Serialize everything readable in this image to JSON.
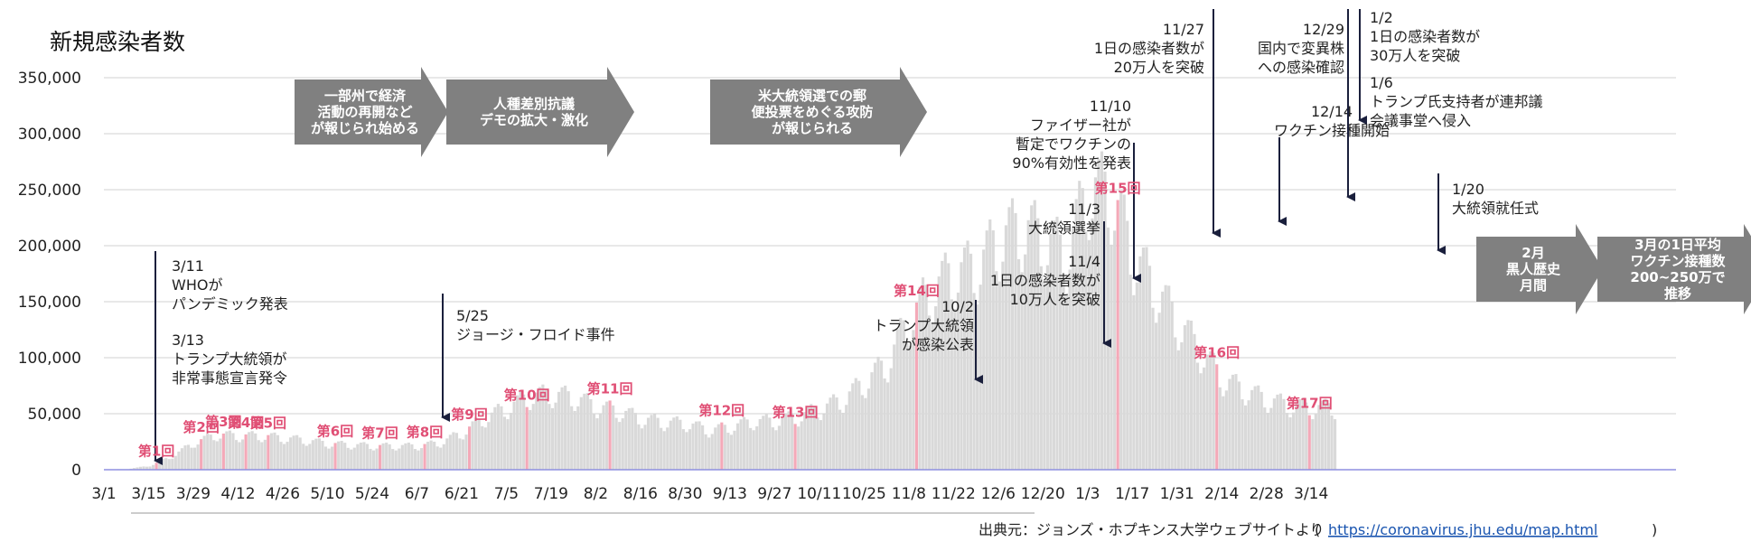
{
  "chart_data": {
    "type": "bar",
    "title": "新規感染者数",
    "ylim": [
      0,
      350000
    ],
    "y_ticks": [
      "0",
      "50,000",
      "100,000",
      "150,000",
      "200,000",
      "250,000",
      "300,000",
      "350,000"
    ],
    "x_ticks": [
      "3/1",
      "3/15",
      "3/29",
      "4/12",
      "4/26",
      "5/10",
      "5/24",
      "6/7",
      "6/21",
      "7/5",
      "7/19",
      "8/2",
      "8/16",
      "8/30",
      "9/13",
      "9/27",
      "10/11",
      "10/25",
      "11/8",
      "11/22",
      "12/6",
      "12/20",
      "1/3",
      "1/17",
      "1/31",
      "2/14",
      "2/28",
      "3/14"
    ],
    "x_start": "2020-03-01",
    "bar_color": "#d9d9d9",
    "highlight_color": "#f4a9b8",
    "weekly_new_cases_estimate": [
      [
        "2020-03-01",
        100
      ],
      [
        "2020-03-08",
        600
      ],
      [
        "2020-03-15",
        3500
      ],
      [
        "2020-03-22",
        12000
      ],
      [
        "2020-03-29",
        24000
      ],
      [
        "2020-04-05",
        31000
      ],
      [
        "2020-04-12",
        30000
      ],
      [
        "2020-04-19",
        30000
      ],
      [
        "2020-04-26",
        28000
      ],
      [
        "2020-05-03",
        26000
      ],
      [
        "2020-05-10",
        23000
      ],
      [
        "2020-05-17",
        22000
      ],
      [
        "2020-05-24",
        21000
      ],
      [
        "2020-05-31",
        21000
      ],
      [
        "2020-06-07",
        21000
      ],
      [
        "2020-06-14",
        24000
      ],
      [
        "2020-06-21",
        33000
      ],
      [
        "2020-06-28",
        46000
      ],
      [
        "2020-07-05",
        55000
      ],
      [
        "2020-07-12",
        65000
      ],
      [
        "2020-07-19",
        67000
      ],
      [
        "2020-07-26",
        64000
      ],
      [
        "2020-08-02",
        56000
      ],
      [
        "2020-08-09",
        52000
      ],
      [
        "2020-08-16",
        45000
      ],
      [
        "2020-08-23",
        42000
      ],
      [
        "2020-08-30",
        41000
      ],
      [
        "2020-09-06",
        35000
      ],
      [
        "2020-09-13",
        38000
      ],
      [
        "2020-09-20",
        43000
      ],
      [
        "2020-09-27",
        43000
      ],
      [
        "2020-10-04",
        47000
      ],
      [
        "2020-10-11",
        54000
      ],
      [
        "2020-10-18",
        62000
      ],
      [
        "2020-10-25",
        78000
      ],
      [
        "2020-11-01",
        95000
      ],
      [
        "2020-11-08",
        135000
      ],
      [
        "2020-11-15",
        160000
      ],
      [
        "2020-11-22",
        175000
      ],
      [
        "2020-11-29",
        180000
      ],
      [
        "2020-12-06",
        205000
      ],
      [
        "2020-12-13",
        215000
      ],
      [
        "2020-12-20",
        205000
      ],
      [
        "2020-12-27",
        190000
      ],
      [
        "2021-01-03",
        250000
      ],
      [
        "2021-01-10",
        245000
      ],
      [
        "2021-01-17",
        190000
      ],
      [
        "2021-01-24",
        160000
      ],
      [
        "2021-01-31",
        130000
      ],
      [
        "2021-02-07",
        105000
      ],
      [
        "2021-02-14",
        80000
      ],
      [
        "2021-02-21",
        70000
      ],
      [
        "2021-02-28",
        62000
      ],
      [
        "2021-03-07",
        57000
      ],
      [
        "2021-03-14",
        55000
      ],
      [
        "2021-03-21",
        55000
      ]
    ],
    "meetings": [
      {
        "label": "第1回",
        "date": "2020-03-17"
      },
      {
        "label": "第2回",
        "date": "2020-03-31"
      },
      {
        "label": "第3回",
        "date": "2020-04-07"
      },
      {
        "label": "第4回",
        "date": "2020-04-14"
      },
      {
        "label": "第5回",
        "date": "2020-04-21"
      },
      {
        "label": "第6回",
        "date": "2020-05-12"
      },
      {
        "label": "第7回",
        "date": "2020-05-26"
      },
      {
        "label": "第8回",
        "date": "2020-06-09"
      },
      {
        "label": "第9回",
        "date": "2020-06-23"
      },
      {
        "label": "第10回",
        "date": "2020-07-11"
      },
      {
        "label": "第11回",
        "date": "2020-08-06"
      },
      {
        "label": "第12回",
        "date": "2020-09-10"
      },
      {
        "label": "第13回",
        "date": "2020-10-03"
      },
      {
        "label": "第14回",
        "date": "2020-11-10"
      },
      {
        "label": "第15回",
        "date": "2021-01-12"
      },
      {
        "label": "第16回",
        "date": "2021-02-12"
      },
      {
        "label": "第17回",
        "date": "2021-03-13"
      }
    ],
    "events": [
      {
        "date": "2020-03-11",
        "lines": [
          "3/11",
          "WHOが",
          "パンデミック発表"
        ]
      },
      {
        "date": "2020-03-13",
        "lines": [
          "3/13",
          "トランプ大統領が",
          "非常事態宣言発令"
        ]
      },
      {
        "date": "2020-05-25",
        "lines": [
          "5/25",
          "ジョージ・フロイド事件"
        ]
      },
      {
        "date": "2020-10-02",
        "lines": [
          "10/2",
          "トランプ大統領",
          "が感染公表"
        ]
      },
      {
        "date": "2020-11-03",
        "lines": [
          "11/3",
          "大統領選挙"
        ]
      },
      {
        "date": "2020-11-04",
        "lines": [
          "11/4",
          "1日の感染者数が",
          "10万人を突破"
        ]
      },
      {
        "date": "2020-11-10",
        "lines": [
          "11/10",
          "ファイザー社が",
          "暫定でワクチンの",
          "90%有効性を発表"
        ]
      },
      {
        "date": "2020-11-27",
        "lines": [
          "11/27",
          "1日の感染者数が",
          "20万人を突破"
        ]
      },
      {
        "date": "2020-12-14",
        "lines": [
          "12/14",
          "ワクチン接種開始"
        ]
      },
      {
        "date": "2020-12-29",
        "lines": [
          "12/29",
          "国内で変異株",
          "への感染確認"
        ]
      },
      {
        "date": "2021-01-02",
        "lines": [
          "1/2",
          "1日の感染者数が",
          "30万人を突破"
        ]
      },
      {
        "date": "2021-01-06",
        "lines": [
          "1/6",
          "トランプ氏支持者が連邦議",
          "会議事堂へ侵入"
        ]
      },
      {
        "date": "2021-01-20",
        "lines": [
          "1/20",
          "大統領就任式"
        ]
      }
    ],
    "period_arrows": [
      {
        "lines": [
          "一部州で経済",
          "活動の再開など",
          "が報じられ始める"
        ],
        "color": "#808080"
      },
      {
        "lines": [
          "人種差別抗議",
          "デモの拡大・激化"
        ],
        "color": "#808080"
      },
      {
        "lines": [
          "米大統領選での郵",
          "便投票をめぐる攻防",
          "が報じられる"
        ],
        "color": "#808080"
      },
      {
        "lines": [
          "2月",
          "黒人歴史",
          "月間"
        ],
        "color": "#808080"
      },
      {
        "lines": [
          "3月の1日平均",
          "ワクチン接種数",
          "200~250万で",
          "推移"
        ],
        "color": "#808080"
      }
    ],
    "source_label": "出典元：ジョンズ・ホプキンス大学ウェブサイトより",
    "source_url": "https://coronavirus.jhu.edu/map.html"
  }
}
